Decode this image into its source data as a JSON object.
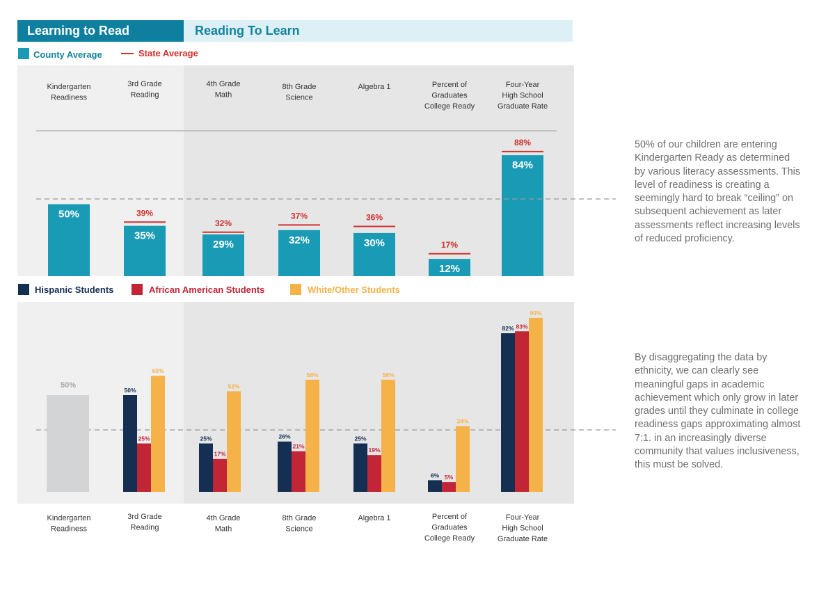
{
  "tabs": {
    "learning_to_read": "Learning to Read",
    "reading_to_learn": "Reading To Learn"
  },
  "colors": {
    "county": "#1a9bb5",
    "state": "#d0312d",
    "hispanic": "#142f52",
    "african_american": "#c22535",
    "white_other": "#f5b249",
    "panel_light": "#f0f0f0",
    "panel_dark": "#e6e6e7",
    "kindergarten_ref": "#d3d4d6"
  },
  "legend_top": {
    "county": "County Average",
    "state": "State Average"
  },
  "legend_bottom": {
    "hispanic": "Hispanic Students",
    "african_american": "African American Students",
    "white_other": "White/Other Students"
  },
  "categories_top": [
    "Kindergarten\nReadiness",
    "3rd Grade\nReading",
    "4th Grade\nMath",
    "8th Grade\nScience",
    "Algebra 1",
    "Percent of\nGraduates\nCollege Ready",
    "Four-Year\nHigh School\nGraduate Rate"
  ],
  "categories_bottom": [
    "Kindergarten\nReadiness",
    "3rd Grade\nReading",
    "4th Grade\nMath",
    "8th Grade\nScience",
    "Algebra 1",
    "Percent of\nGraduates\nCollege Ready",
    "Four-Year\nHigh School\nGraduate Rate"
  ],
  "chart_data": [
    {
      "type": "bar",
      "categories": [
        "Kindergarten Readiness",
        "3rd Grade Reading",
        "4th Grade Math",
        "8th Grade Science",
        "Algebra 1",
        "Percent of Graduates College Ready",
        "Four-Year High School Graduate Rate"
      ],
      "series": [
        {
          "name": "County Average",
          "values": [
            50,
            35,
            29,
            32,
            30,
            12,
            84
          ]
        },
        {
          "name": "State Average",
          "values": [
            null,
            39,
            32,
            37,
            36,
            17,
            88
          ]
        }
      ],
      "value_labels": {
        "county": [
          "50%",
          "35%",
          "29%",
          "32%",
          "30%",
          "12%",
          "84%"
        ],
        "state": [
          "",
          "39%",
          "32%",
          "37%",
          "36%",
          "17%",
          "88%"
        ]
      },
      "ylim": [
        0,
        100
      ]
    },
    {
      "type": "bar",
      "categories": [
        "Kindergarten Readiness",
        "3rd Grade Reading",
        "4th Grade Math",
        "8th Grade Science",
        "Algebra 1",
        "Percent of Graduates College Ready",
        "Four-Year High School Graduate Rate"
      ],
      "series": [
        {
          "name": "Hispanic Students",
          "values": [
            null,
            50,
            25,
            26,
            25,
            6,
            82
          ]
        },
        {
          "name": "African American Students",
          "values": [
            null,
            25,
            17,
            21,
            19,
            5,
            83
          ]
        },
        {
          "name": "White/Other Students",
          "values": [
            null,
            60,
            52,
            58,
            58,
            34,
            90
          ]
        }
      ],
      "reference": {
        "category": "Kindergarten Readiness",
        "value": 50,
        "label": "50%"
      },
      "value_labels": {
        "hispanic": [
          "",
          "50%",
          "25%",
          "26%",
          "25%",
          "6%",
          "82%"
        ],
        "african_american": [
          "",
          "25%",
          "17%",
          "21%",
          "19%",
          "5%",
          "83%"
        ],
        "white_other": [
          "",
          "60%",
          "52%",
          "58%",
          "58%",
          "34%",
          "90%"
        ]
      },
      "ylim": [
        0,
        100
      ]
    }
  ],
  "side_text": {
    "top": "50% of our children are entering Kindergarten Ready as determined by various literacy assessments. This level of readiness is creating a seemingly hard to break “ceiling” on subsequent achievement as later assessments reflect increasing levels of reduced proficiency.",
    "bottom": "By disaggregating the data by ethnicity, we can clearly see meaningful gaps in academic achievement which only grow in later grades until they culminate in college readiness gaps approximating almost 7:1. in an increasingly diverse community that values inclusiveness, this must be solved."
  }
}
